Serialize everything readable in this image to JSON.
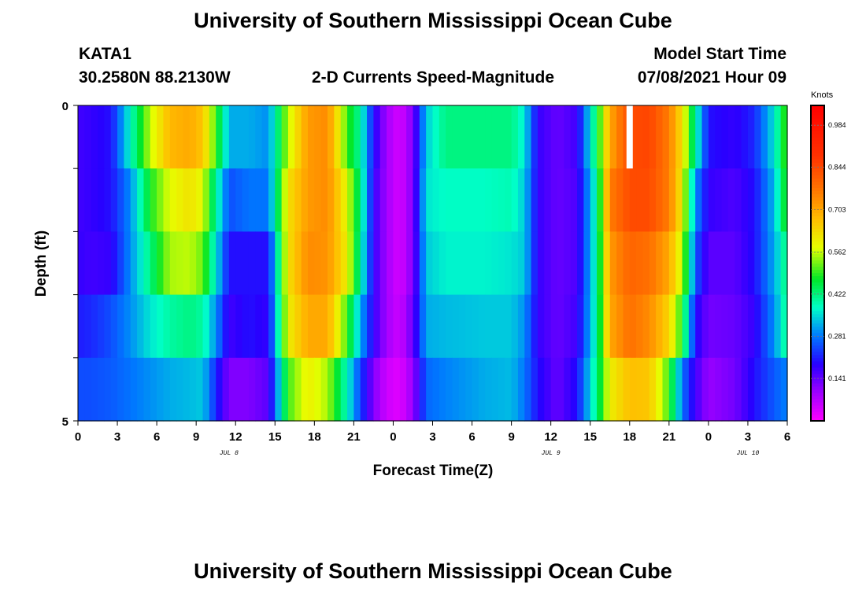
{
  "header": {
    "title": "University of Southern Mississippi Ocean Cube",
    "station": "KATA1",
    "coords": "30.2580N  88.2130W",
    "subtitle": "2-D Currents Speed-Magnitude",
    "model_label": "Model Start Time",
    "model_time": "07/08/2021 Hour 09"
  },
  "footer": {
    "title": "University of Southern Mississippi Ocean Cube"
  },
  "chart_data": {
    "type": "heatmap",
    "title": "2-D Currents Speed-Magnitude",
    "xlabel": "Forecast Time(Z)",
    "ylabel": "Depth (ft)",
    "x_range_hours": [
      0,
      54
    ],
    "y_range": [
      0,
      5
    ],
    "x_tick_hours": [
      0,
      3,
      6,
      9,
      12,
      15,
      18,
      21,
      24,
      27,
      30,
      33,
      36,
      39,
      42,
      45,
      48,
      51,
      54
    ],
    "x_tick_labels": [
      "0",
      "3",
      "6",
      "9",
      "12",
      "15",
      "18",
      "21",
      "0",
      "3",
      "6",
      "9",
      "12",
      "15",
      "18",
      "21",
      "0",
      "3",
      "6"
    ],
    "y_tick_labels": [
      "0",
      "5"
    ],
    "date_labels": [
      {
        "text": "JUL 8",
        "hour": 11.5
      },
      {
        "text": "JUL 9",
        "hour": 36
      },
      {
        "text": "JUL 10",
        "hour": 51
      }
    ],
    "colorbar": {
      "label": "Knots",
      "min": 0,
      "max": 1.05,
      "ticks": [
        0.141,
        0.281,
        0.422,
        0.562,
        0.703,
        0.844,
        0.984
      ],
      "tick_labels": [
        "0.141",
        "0.281",
        "0.422",
        "0.562",
        "0.703",
        "0.844",
        "0.984"
      ]
    },
    "missing_cell": {
      "hour": 42,
      "layer": 0
    },
    "layers": [
      "0-1",
      "1-2",
      "2-3",
      "3-4",
      "4-5"
    ],
    "time_step_hours": 0.5,
    "keyframes": [
      {
        "t": 0,
        "v": [
          0.17,
          0.17,
          0.18,
          0.21,
          0.25
        ]
      },
      {
        "t": 1,
        "v": [
          0.18,
          0.18,
          0.17,
          0.22,
          0.25
        ]
      },
      {
        "t": 2.5,
        "v": [
          0.2,
          0.2,
          0.18,
          0.25,
          0.26
        ]
      },
      {
        "t": 4,
        "v": [
          0.38,
          0.3,
          0.3,
          0.3,
          0.28
        ]
      },
      {
        "t": 5.5,
        "v": [
          0.56,
          0.48,
          0.42,
          0.36,
          0.3
        ]
      },
      {
        "t": 7,
        "v": [
          0.68,
          0.58,
          0.55,
          0.4,
          0.32
        ]
      },
      {
        "t": 8.5,
        "v": [
          0.7,
          0.62,
          0.56,
          0.42,
          0.33
        ]
      },
      {
        "t": 9.5,
        "v": [
          0.66,
          0.58,
          0.52,
          0.4,
          0.34
        ]
      },
      {
        "t": 10.5,
        "v": [
          0.5,
          0.4,
          0.36,
          0.3,
          0.22
        ]
      },
      {
        "t": 11.5,
        "v": [
          0.32,
          0.25,
          0.2,
          0.17,
          0.12
        ]
      },
      {
        "t": 13,
        "v": [
          0.32,
          0.28,
          0.2,
          0.2,
          0.12
        ]
      },
      {
        "t": 14.5,
        "v": [
          0.3,
          0.28,
          0.2,
          0.18,
          0.15
        ]
      },
      {
        "t": 16,
        "v": [
          0.56,
          0.62,
          0.62,
          0.6,
          0.5
        ]
      },
      {
        "t": 17.5,
        "v": [
          0.72,
          0.72,
          0.74,
          0.7,
          0.6
        ]
      },
      {
        "t": 19,
        "v": [
          0.74,
          0.74,
          0.73,
          0.7,
          0.55
        ]
      },
      {
        "t": 20.5,
        "v": [
          0.5,
          0.58,
          0.6,
          0.5,
          0.38
        ]
      },
      {
        "t": 21.5,
        "v": [
          0.4,
          0.42,
          0.4,
          0.32,
          0.24
        ]
      },
      {
        "t": 22.5,
        "v": [
          0.2,
          0.18,
          0.18,
          0.18,
          0.12
        ]
      },
      {
        "t": 23.5,
        "v": [
          0.09,
          0.09,
          0.09,
          0.09,
          0.05
        ]
      },
      {
        "t": 24.5,
        "v": [
          0.04,
          0.04,
          0.04,
          0.05,
          0.03
        ]
      },
      {
        "t": 25.5,
        "v": [
          0.12,
          0.12,
          0.12,
          0.14,
          0.1
        ]
      },
      {
        "t": 26.5,
        "v": [
          0.34,
          0.36,
          0.34,
          0.32,
          0.27
        ]
      },
      {
        "t": 28,
        "v": [
          0.42,
          0.38,
          0.37,
          0.33,
          0.29
        ]
      },
      {
        "t": 31,
        "v": [
          0.42,
          0.38,
          0.37,
          0.34,
          0.32
        ]
      },
      {
        "t": 33,
        "v": [
          0.42,
          0.39,
          0.36,
          0.34,
          0.33
        ]
      },
      {
        "t": 34,
        "v": [
          0.36,
          0.34,
          0.34,
          0.3,
          0.28
        ]
      },
      {
        "t": 35,
        "v": [
          0.18,
          0.18,
          0.18,
          0.18,
          0.2
        ]
      },
      {
        "t": 36.5,
        "v": [
          0.14,
          0.14,
          0.14,
          0.14,
          0.14
        ]
      },
      {
        "t": 38,
        "v": [
          0.17,
          0.16,
          0.16,
          0.17,
          0.2
        ]
      },
      {
        "t": 39.5,
        "v": [
          0.45,
          0.4,
          0.4,
          0.4,
          0.42
        ]
      },
      {
        "t": 40.5,
        "v": [
          0.7,
          0.76,
          0.72,
          0.7,
          0.6
        ]
      },
      {
        "t": 42,
        "v": [
          0.84,
          0.84,
          0.8,
          0.78,
          0.67
        ]
      },
      {
        "t": 43.5,
        "v": [
          0.85,
          0.84,
          0.78,
          0.74,
          0.66
        ]
      },
      {
        "t": 45,
        "v": [
          0.76,
          0.76,
          0.7,
          0.64,
          0.5
        ]
      },
      {
        "t": 46,
        "v": [
          0.62,
          0.6,
          0.56,
          0.48,
          0.28
        ]
      },
      {
        "t": 47,
        "v": [
          0.4,
          0.3,
          0.26,
          0.2,
          0.17
        ]
      },
      {
        "t": 48,
        "v": [
          0.2,
          0.18,
          0.15,
          0.13,
          0.1
        ]
      },
      {
        "t": 50,
        "v": [
          0.18,
          0.16,
          0.15,
          0.14,
          0.13
        ]
      },
      {
        "t": 51.5,
        "v": [
          0.22,
          0.2,
          0.2,
          0.18,
          0.2
        ]
      },
      {
        "t": 53,
        "v": [
          0.36,
          0.33,
          0.32,
          0.3,
          0.26
        ]
      },
      {
        "t": 54,
        "v": [
          0.52,
          0.5,
          0.43,
          0.42,
          0.29
        ]
      }
    ]
  }
}
